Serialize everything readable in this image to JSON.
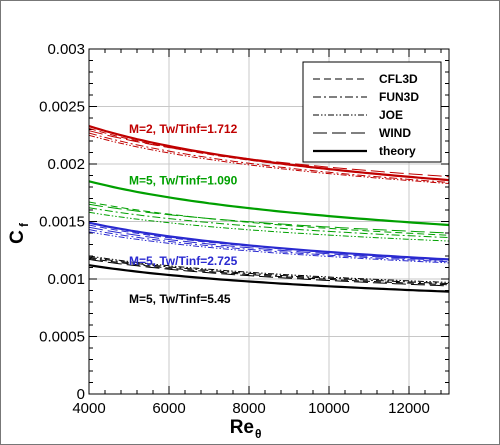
{
  "chart_data": {
    "type": "line",
    "xlabel": "Re",
    "xlabel_subscript": "θ",
    "ylabel": "C",
    "ylabel_subscript": "f",
    "xlim": [
      4000,
      13000
    ],
    "ylim": [
      0,
      0.003
    ],
    "xticks": [
      4000,
      6000,
      8000,
      10000,
      12000
    ],
    "xtick_labels": [
      "4000",
      "6000",
      "8000",
      "10000",
      "12000"
    ],
    "yticks": [
      0,
      0.0005,
      0.001,
      0.0015,
      0.002,
      0.0025,
      0.003
    ],
    "ytick_labels": [
      "0",
      "0.0005",
      "0.001",
      "0.0015",
      "0.002",
      "0.0025",
      "0.003"
    ],
    "grid": true,
    "legend_position": "top-right",
    "legend": [
      {
        "label": "CFL3D",
        "style": "dash"
      },
      {
        "label": "FUN3D",
        "style": "dashdot"
      },
      {
        "label": "JOE",
        "style": "dashdotdot"
      },
      {
        "label": "WIND",
        "style": "longdash"
      },
      {
        "label": "theory",
        "style": "solid"
      }
    ],
    "groups": [
      {
        "label": "M=2, Tw/Tinf=1.712",
        "color": "#c00000",
        "label_anchor": [
          5000,
          0.00227
        ],
        "curves": {
          "theory": {
            "start": 0.00233,
            "end": 0.00186
          },
          "CFL3D": {
            "start": 0.00231,
            "end": 0.00186
          },
          "FUN3D": {
            "start": 0.00227,
            "end": 0.00184
          },
          "JOE": {
            "start": 0.00225,
            "end": 0.00183
          },
          "WIND": {
            "start": 0.00229,
            "end": 0.00189
          }
        }
      },
      {
        "label": "M=5, Tw/Tinf=1.090",
        "color": "#00a000",
        "label_anchor": [
          5000,
          0.00182
        ],
        "curves": {
          "theory": {
            "start": 0.00185,
            "end": 0.00147
          },
          "CFL3D": {
            "start": 0.00167,
            "end": 0.00138
          },
          "FUN3D": {
            "start": 0.00162,
            "end": 0.00136
          },
          "JOE": {
            "start": 0.00158,
            "end": 0.00133
          },
          "WIND": {
            "start": 0.00165,
            "end": 0.0014
          }
        }
      },
      {
        "label": "M=5, Tw/Tinf=2.725",
        "color": "#2a2ad0",
        "label_anchor": [
          5000,
          0.00112
        ],
        "curves": {
          "theory": {
            "start": 0.00149,
            "end": 0.00117
          },
          "CFL3D": {
            "start": 0.00147,
            "end": 0.00117
          },
          "FUN3D": {
            "start": 0.00143,
            "end": 0.00115
          },
          "JOE": {
            "start": 0.00141,
            "end": 0.00114
          },
          "WIND": {
            "start": 0.00145,
            "end": 0.00116
          }
        }
      },
      {
        "label": "M=5, Tw/Tinf=5.45",
        "color": "#000000",
        "label_anchor": [
          5000,
          0.00079
        ],
        "curves": {
          "theory": {
            "start": 0.00112,
            "end": 0.00089
          },
          "CFL3D": {
            "start": 0.00118,
            "end": 0.00095
          },
          "FUN3D": {
            "start": 0.00119,
            "end": 0.00096
          },
          "JOE": {
            "start": 0.0012,
            "end": 0.00097
          },
          "WIND": {
            "start": 0.00117,
            "end": 0.00094
          }
        }
      }
    ]
  }
}
